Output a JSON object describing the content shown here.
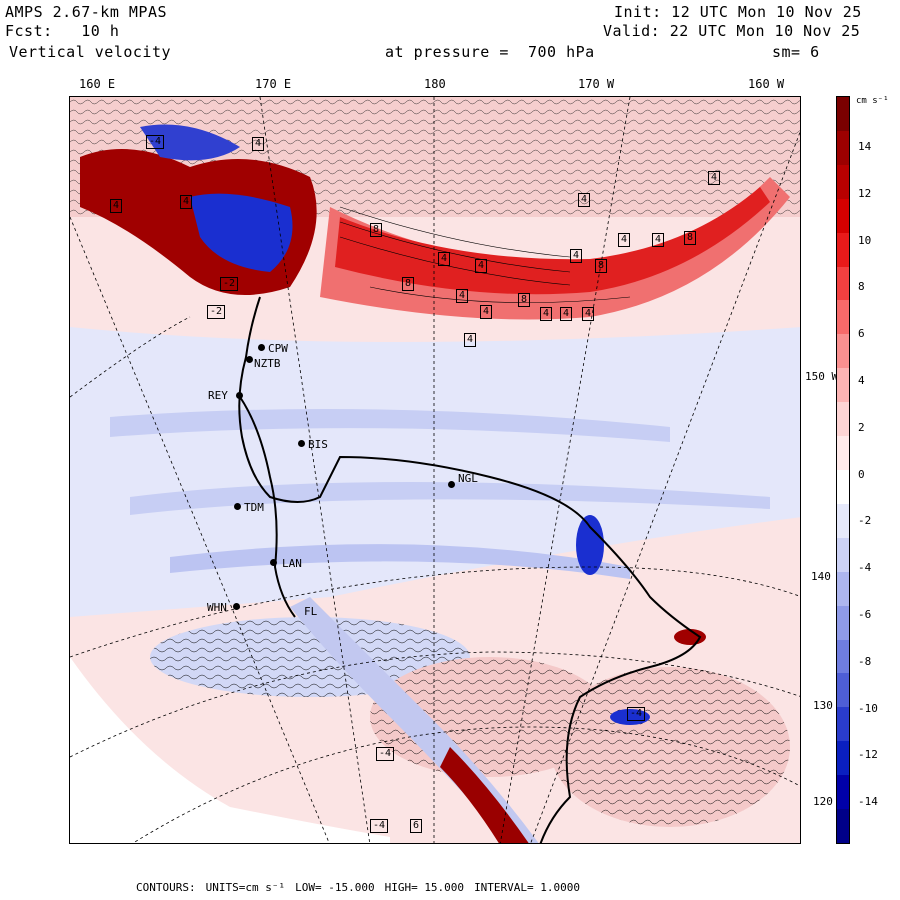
{
  "header": {
    "model": "AMPS 2.67-km MPAS",
    "forecast": "Fcst:   10 h",
    "field": "Vertical velocity",
    "pressure": "at pressure =  700 hPa",
    "init": "Init: 12 UTC Mon 10 Nov 25",
    "valid": "Valid: 22 UTC Mon 10 Nov 25",
    "smooth": "sm= 6"
  },
  "longitude_labels": [
    "160 E",
    "170 E",
    "180",
    "170 W",
    "160 W"
  ],
  "latitude_labels": [
    "150 W",
    "140 W",
    "130 W",
    "120 W"
  ],
  "stations": [
    "CPW",
    "NZTB",
    "REY",
    "BIS",
    "NGL",
    "TDM",
    "LAN",
    "WHN",
    "FL"
  ],
  "contour_labels": [
    "4",
    "4",
    "8",
    "4",
    "4",
    "4",
    "8",
    "4",
    "4",
    "8",
    "8",
    "4",
    "4",
    "8",
    "4",
    "4",
    "4",
    "4",
    "4",
    "4",
    "-4",
    "-4",
    "-4",
    "-4",
    "-2",
    "-2",
    "4",
    "6"
  ],
  "colorbar": {
    "units": "cm s⁻¹",
    "labels": [
      "14",
      "12",
      "10",
      "8",
      "6",
      "4",
      "2",
      "0",
      "-2",
      "-4",
      "-6",
      "-8",
      "-10",
      "-12",
      "-14"
    ],
    "colors": [
      "#7a0000",
      "#9c0000",
      "#b80000",
      "#d40000",
      "#e81a1a",
      "#f24040",
      "#f76a6a",
      "#fa9090",
      "#fcb4b4",
      "#fdd4d4",
      "#ffeaea",
      "#ffffff",
      "#e6e9fb",
      "#ccd2f6",
      "#adb6ef",
      "#8f9be8",
      "#6f7de0",
      "#4e5ed6",
      "#2a3ccc",
      "#0a1fc0",
      "#0000a8",
      "#000088"
    ]
  },
  "footer": {
    "contours": "CONTOURS:",
    "units": "UNITS=cm s⁻¹",
    "low": "LOW= -15.000",
    "high": "HIGH= 15.000",
    "interval": "INTERVAL= 1.0000"
  },
  "colors": {
    "blue_region": "#d0d6f5",
    "red_region": "#f6c8c8",
    "strong_red": "#e02020",
    "strong_blue": "#1a2fd0"
  }
}
